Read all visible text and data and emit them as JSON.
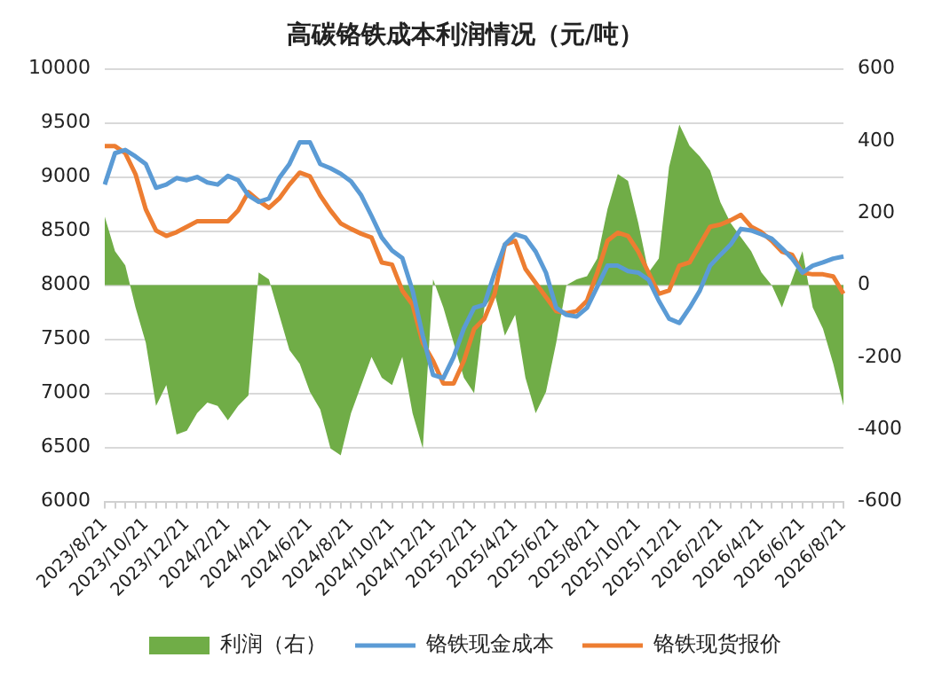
{
  "chart_data": {
    "type": "line",
    "title": "高碳铬铁成本利润情况（元/吨）",
    "categories": [
      "2023/8/21",
      null,
      null,
      null,
      "2023/10/21",
      null,
      null,
      null,
      "2023/12/21",
      null,
      null,
      null,
      "2024/2/21",
      null,
      null,
      null,
      "2024/4/21",
      null,
      null,
      null,
      "2024/6/21",
      null,
      null,
      null,
      "2024/8/21",
      null,
      null,
      null,
      "2024/10/21",
      null,
      null,
      null,
      "2024/12/21",
      null,
      null,
      null,
      "2025/2/21",
      null,
      null,
      null,
      "2025/4/21",
      null,
      null,
      null,
      "2025/6/21",
      null,
      null,
      null,
      "2025/8/21",
      null,
      null,
      null,
      "2025/10/21",
      null,
      null,
      null,
      "2025/12/21",
      null,
      null,
      null,
      "2026/2/21",
      null,
      null,
      null,
      "2026/4/21",
      null,
      null,
      null,
      "2026/6/21",
      null,
      null,
      null,
      "2026/8/21"
    ],
    "series": [
      {
        "name": "利润（右）",
        "type": "area",
        "axis": "y2",
        "color": "#70ad47",
        "values": [
          190,
          94,
          55,
          -62,
          -160,
          -335,
          -277,
          -414,
          -404,
          -355,
          -326,
          -335,
          -375,
          -335,
          -306,
          35,
          16,
          -82,
          -180,
          -218,
          -296,
          -345,
          -453,
          -472,
          -355,
          -277,
          -199,
          -257,
          -277,
          -199,
          -355,
          -453,
          16,
          -62,
          -160,
          -257,
          -300,
          -62,
          -23,
          -140,
          -82,
          -257,
          -355,
          -296,
          -160,
          0,
          16,
          25,
          74,
          211,
          308,
          289,
          172,
          35,
          74,
          328,
          445,
          386,
          357,
          318,
          230,
          172,
          133,
          94,
          35,
          0,
          -62,
          16,
          94,
          -62,
          -121,
          -218,
          -335
        ]
      },
      {
        "name": "铬铁现金成本",
        "type": "line",
        "color": "#5b9bd5",
        "values": [
          8930,
          9220,
          9250,
          9190,
          9120,
          8900,
          8930,
          8990,
          8970,
          9000,
          8950,
          8930,
          9010,
          8970,
          8830,
          8770,
          8800,
          8990,
          9120,
          9320,
          9320,
          9120,
          9080,
          9030,
          8960,
          8830,
          8640,
          8440,
          8320,
          8250,
          7950,
          7530,
          7170,
          7140,
          7335,
          7600,
          7790,
          7820,
          8115,
          8375,
          8470,
          8440,
          8310,
          8115,
          7790,
          7725,
          7710,
          7790,
          7985,
          8180,
          8180,
          8130,
          8115,
          8050,
          7855,
          7690,
          7650,
          7790,
          7950,
          8180,
          8280,
          8375,
          8520,
          8505,
          8470,
          8430,
          8340,
          8245,
          8115,
          8180,
          8210,
          8245,
          8265
        ]
      },
      {
        "name": "铬铁现货报价",
        "type": "line",
        "color": "#ed7d31",
        "values": [
          9285,
          9285,
          9220,
          9025,
          8700,
          8505,
          8455,
          8490,
          8540,
          8590,
          8590,
          8590,
          8590,
          8690,
          8860,
          8780,
          8715,
          8800,
          8930,
          9040,
          9005,
          8830,
          8690,
          8570,
          8520,
          8475,
          8440,
          8210,
          8190,
          7950,
          7820,
          7465,
          7300,
          7090,
          7090,
          7300,
          7595,
          7690,
          7920,
          8375,
          8410,
          8150,
          8020,
          7890,
          7760,
          7740,
          7760,
          7855,
          8115,
          8410,
          8485,
          8455,
          8310,
          8115,
          7920,
          7950,
          8180,
          8210,
          8375,
          8540,
          8560,
          8600,
          8650,
          8540,
          8490,
          8410,
          8310,
          8280,
          8115,
          8100,
          8100,
          8080,
          7920
        ]
      }
    ],
    "ylim": [
      6000,
      10000
    ],
    "yticks": [
      6000,
      6500,
      7000,
      7500,
      8000,
      8500,
      9000,
      9500,
      10000
    ],
    "y2lim": [
      -600,
      600
    ],
    "y2ticks": [
      -600,
      -400,
      -200,
      0,
      200,
      400,
      600
    ],
    "grid": "y",
    "legend": "bottom",
    "marker": "none",
    "line_style": "solid"
  }
}
